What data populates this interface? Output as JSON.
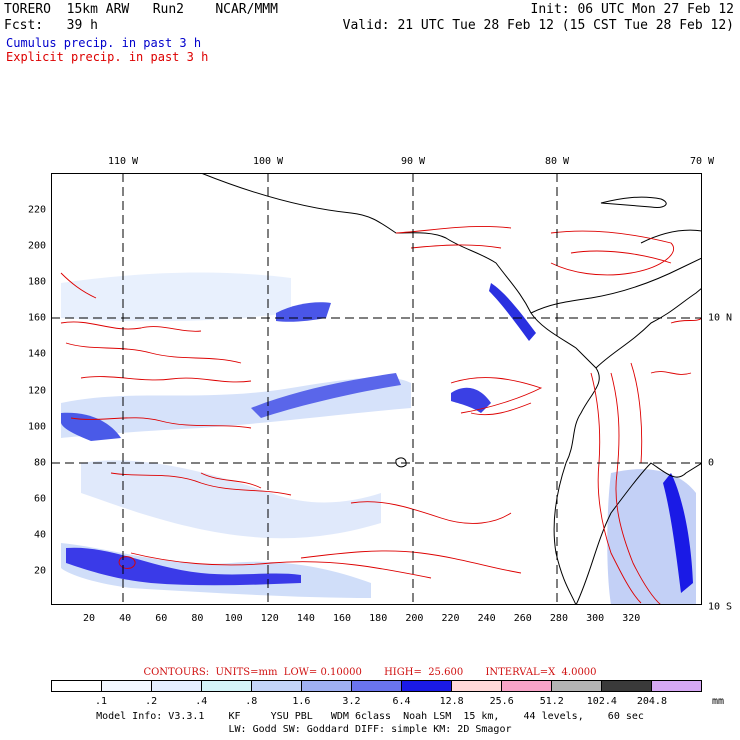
{
  "header": {
    "model": "TORERO  15km ARW   Run2    NCAR/MMM",
    "init": "Init: 06 UTC Mon 27 Feb 12",
    "fcst": "Fcst:   39 h",
    "valid": "Valid: 21 UTC Tue 28 Feb 12 (15 CST Tue 28 Feb 12)"
  },
  "legend": {
    "cumulus": "Cumulus precip. in past 3 h",
    "explicit": "Explicit precip. in past 3 h",
    "cumulus_color": "#0000cc",
    "explicit_color": "#dd0000"
  },
  "axes": {
    "top_ticks": [
      "110 W",
      "100 W",
      "90 W",
      "80 W",
      "70 W"
    ],
    "right_ticks": [
      "10 N",
      "0",
      "10 S"
    ],
    "bottom_ticks": [
      "20",
      "40",
      "60",
      "80",
      "100",
      "120",
      "140",
      "160",
      "180",
      "200",
      "220",
      "240",
      "260",
      "280",
      "300",
      "320"
    ],
    "left_ticks": [
      "20",
      "40",
      "60",
      "80",
      "100",
      "120",
      "140",
      "160",
      "180",
      "200",
      "220"
    ]
  },
  "contour_info": "CONTOURS:  UNITS=mm  LOW= 0.10000       HIGH=  25.600       INTERVAL=X  4.0000",
  "colorbar": {
    "labels": [
      ".1",
      ".2",
      ".4",
      ".8",
      "1.6",
      "3.2",
      "6.4",
      "12.8",
      "25.6",
      "51.2",
      "102.4",
      "204.8"
    ],
    "unit": "mm",
    "colors": [
      "#ffffff",
      "#f2f7ff",
      "#e4eeff",
      "#d4f4f8",
      "#c4d4f8",
      "#9fb0f2",
      "#6a74ee",
      "#1a1ae6",
      "#ffd8d8",
      "#f7a4c8",
      "#b4b4b4",
      "#3a3a3a",
      "#d6a8f4"
    ]
  },
  "footer": {
    "line1": "Model Info: V3.3.1    KF     YSU PBL   WDM 6class  Noah LSM  15 km,    44 levels,    60 sec",
    "line2": "LW: Godd SW: Goddard DIFF: simple KM: 2D Smagor"
  }
}
